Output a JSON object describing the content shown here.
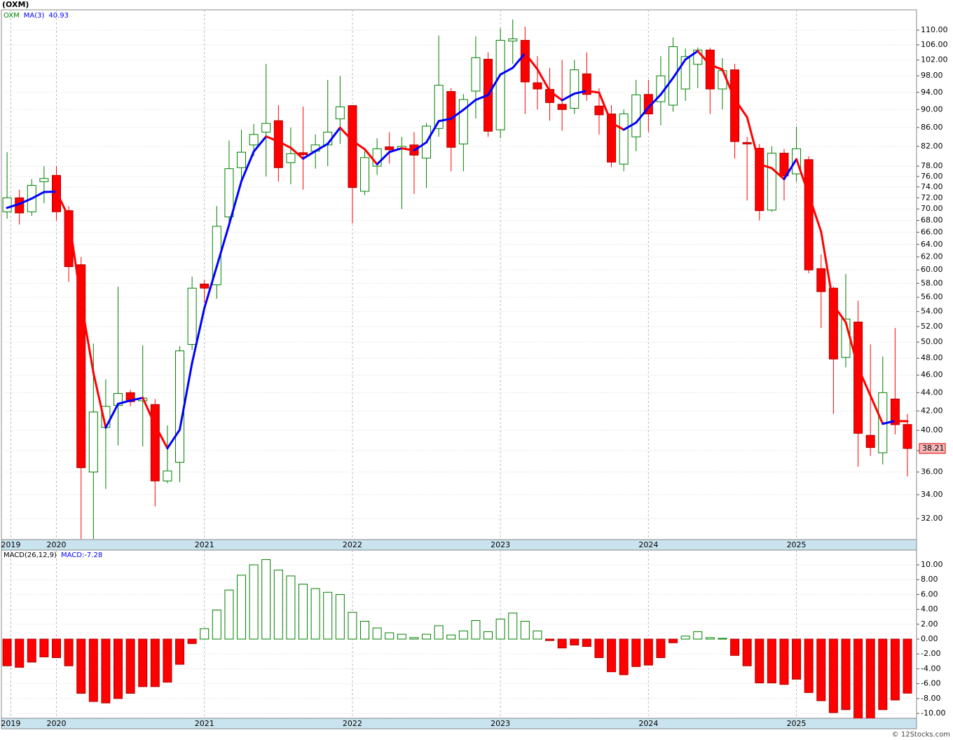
{
  "header": {
    "title": "(OXM)"
  },
  "chart_data": [
    {
      "type": "candlestick",
      "symbol": "OXM",
      "categories": [
        null,
        null,
        null,
        null,
        null,
        null,
        null,
        null,
        null,
        null,
        null,
        null,
        null,
        null,
        null,
        null,
        null,
        null,
        null,
        null,
        null,
        null,
        null,
        null,
        null,
        null,
        null,
        null,
        null,
        null,
        null,
        null,
        null,
        null,
        null,
        null,
        null,
        null,
        null,
        null,
        null,
        null,
        null,
        null,
        null,
        null,
        null,
        null,
        null,
        null,
        null,
        null,
        null,
        null,
        null,
        null,
        null,
        null,
        null,
        null,
        null,
        null,
        null,
        null,
        null,
        null,
        null,
        null,
        null,
        null,
        null,
        null,
        null,
        null
      ],
      "open": [
        69.5,
        72,
        69.5,
        75,
        76.2,
        69.7,
        60.8,
        36,
        40.3,
        42.6,
        44,
        43.1,
        42.7,
        35.2,
        36.9,
        49.7,
        57.9,
        57.8,
        68.6,
        77.7,
        82.3,
        85,
        87.5,
        78.7,
        80.7,
        81,
        82.3,
        87.9,
        90.9,
        73.2,
        78,
        81.9,
        81.4,
        82.3,
        79.6,
        85.8,
        94.2,
        82.5,
        94.3,
        102.2,
        85.5,
        107,
        107.2,
        96.3,
        94.7,
        91.2,
        90.3,
        98.5,
        90.8,
        89,
        78.4,
        84,
        93.5,
        91.8,
        91,
        94.8,
        100.9,
        104.6,
        94.8,
        99.5,
        82.8,
        81.6,
        69.8,
        80.6,
        76.5,
        79.3,
        60.2,
        57.3,
        48.1,
        52.6,
        39.5,
        37.8,
        43.3,
        40.6
      ],
      "high": [
        80.8,
        73.5,
        75.5,
        78,
        78,
        70.5,
        62,
        49.8,
        45.5,
        57.5,
        44.3,
        49.6,
        43.3,
        40.5,
        49.5,
        59,
        58.5,
        70.5,
        83.2,
        85.5,
        86.8,
        101,
        91,
        86,
        90.7,
        84.5,
        97,
        98,
        91,
        81,
        83.7,
        85,
        84,
        85,
        87,
        108.5,
        95,
        93.6,
        108.3,
        104,
        110.5,
        113,
        111,
        103,
        100,
        102,
        102,
        104,
        95,
        91,
        90,
        97,
        97,
        103,
        108,
        105,
        105.3,
        105.2,
        102.5,
        101,
        84,
        82.5,
        82,
        81.5,
        86.2,
        80,
        62.4,
        57.5,
        59.4,
        55.5,
        49.7,
        48.2,
        51.8,
        41.7
      ],
      "low": [
        68.3,
        67.3,
        68.8,
        71,
        68,
        58.2,
        30.4,
        30.4,
        34.5,
        38.5,
        42.5,
        38.4,
        33,
        35,
        35.1,
        49,
        55.2,
        55.8,
        67.8,
        75.2,
        80,
        76,
        75,
        74.5,
        73.5,
        77.5,
        78,
        82.5,
        67.5,
        72.5,
        76.3,
        78.5,
        70,
        72.7,
        73.8,
        84,
        77,
        77,
        88,
        84,
        83.7,
        101,
        89,
        90,
        87.5,
        85.3,
        89,
        92,
        84.5,
        77.8,
        77,
        81,
        85,
        86.5,
        89.5,
        92,
        95,
        89,
        90,
        79.5,
        71.5,
        68,
        69.5,
        71.5,
        75,
        59.5,
        51.8,
        41.7,
        46.9,
        36.5,
        37.5,
        36.7,
        39.6,
        35.6
      ],
      "close": [
        72,
        69.3,
        74.3,
        75.6,
        69.5,
        60.5,
        36.4,
        41.9,
        42.5,
        43.9,
        43,
        43.4,
        35.2,
        36.1,
        48.9,
        57.3,
        57.3,
        67,
        77.5,
        80.8,
        84.5,
        86.9,
        77.7,
        80.5,
        80.3,
        82.3,
        85,
        90.6,
        73.9,
        79.7,
        81.5,
        81.3,
        82,
        80.2,
        86.3,
        95.7,
        81.8,
        92.3,
        102.6,
        85.2,
        107.2,
        107.6,
        96.5,
        94.8,
        91.6,
        90,
        99.5,
        93.5,
        88.8,
        78.8,
        89,
        93.4,
        89,
        98,
        105.5,
        102.9,
        104.6,
        94.8,
        99.3,
        83,
        82.5,
        69.7,
        80.6,
        76.1,
        81.5,
        60,
        56.8,
        47.9,
        53,
        39.7,
        38.3,
        44,
        40.58,
        38.21
      ],
      "up_color": "#008000",
      "down_color": "#ff0000",
      "ma": {
        "name": "MA(3)",
        "color": "#0000ff",
        "down_color": "#ff0000",
        "values": [
          70.2,
          70.9,
          71.87,
          73.07,
          73.13,
          68.53,
          55.47,
          46.27,
          40.27,
          42.77,
          43.13,
          43.43,
          40.53,
          38.23,
          40.07,
          47.43,
          54.5,
          60.53,
          67.27,
          75.1,
          80.93,
          84.07,
          83.03,
          81.7,
          79.5,
          81.03,
          82.53,
          85.97,
          83.17,
          81.4,
          78.37,
          80.83,
          81.6,
          81.17,
          82.83,
          87.4,
          87.93,
          89.93,
          92.23,
          93.37,
          98.33,
          100,
          103.77,
          99.63,
          94.3,
          92.13,
          93.7,
          94.33,
          93.93,
          87.03,
          85.53,
          87.07,
          90.47,
          93.47,
          97.5,
          102.13,
          104.33,
          100.77,
          99.57,
          92.37,
          88.27,
          78.4,
          77.6,
          75.47,
          79.4,
          72.53,
          66.1,
          54.9,
          52.57,
          46.87,
          43.67,
          40.67,
          40.96,
          40.93
        ]
      },
      "log_y": true,
      "grid": true,
      "ylim": [
        30.35,
        115.8
      ],
      "yticks": [
        {
          "value": 110,
          "label": "110.00"
        },
        {
          "value": 106,
          "label": "106.00"
        },
        {
          "value": 102,
          "label": "102.00"
        },
        {
          "value": 98,
          "label": "98.00"
        },
        {
          "value": 94,
          "label": "94.00"
        },
        {
          "value": 90,
          "label": "90.00"
        },
        {
          "value": 86,
          "label": "86.00"
        },
        {
          "value": 82,
          "label": "82.00"
        },
        {
          "value": 78,
          "label": "78.00"
        },
        {
          "value": 76,
          "label": "76.00"
        },
        {
          "value": 74,
          "label": "74.00"
        },
        {
          "value": 72,
          "label": "72.00"
        },
        {
          "value": 70,
          "label": "70.00"
        },
        {
          "value": 68,
          "label": "68.00"
        },
        {
          "value": 66,
          "label": "66.00"
        },
        {
          "value": 64,
          "label": "64.00"
        },
        {
          "value": 62,
          "label": "62.00"
        },
        {
          "value": 60,
          "label": "60.00"
        },
        {
          "value": 58,
          "label": "58.00"
        },
        {
          "value": 56,
          "label": "56.00"
        },
        {
          "value": 54,
          "label": "54.00"
        },
        {
          "value": 52,
          "label": "52.00"
        },
        {
          "value": 50,
          "label": "50.00"
        },
        {
          "value": 48,
          "label": "48.00"
        },
        {
          "value": 46,
          "label": "46.00"
        },
        {
          "value": 44,
          "label": "44.00"
        },
        {
          "value": 42,
          "label": "42.00"
        },
        {
          "value": 40,
          "label": "40.00"
        },
        {
          "value": 38,
          "label": "38.00"
        },
        {
          "value": 36,
          "label": "36.00"
        },
        {
          "value": 34,
          "label": "34.00"
        },
        {
          "value": 32,
          "label": "32.00"
        }
      ],
      "xlim": [
        -0.46,
        73.74
      ],
      "xticks": [
        {
          "value": 0.3,
          "label": "2019"
        },
        {
          "value": 4,
          "label": "2020"
        },
        {
          "value": 16,
          "label": "2021"
        },
        {
          "value": 28,
          "label": "2022"
        },
        {
          "value": 40,
          "label": "2023"
        },
        {
          "value": 52,
          "label": "2024"
        },
        {
          "value": 64,
          "label": "2025"
        }
      ]
    },
    {
      "type": "bar",
      "title": "MACD(26,12,9)",
      "label": "MACD:",
      "grid": true,
      "up_color": "#008000",
      "down_color": "#ff0000",
      "series": [
        {
          "name": "MACD",
          "values": [
            -3.6,
            -3.8,
            -3.1,
            -2.4,
            -2.5,
            -3.6,
            -7.3,
            -8.4,
            -8.6,
            -8.0,
            -7.3,
            -6.4,
            -6.4,
            -5.8,
            -3.4,
            -0.6,
            1.4,
            3.9,
            6.6,
            8.6,
            10.0,
            10.7,
            9.3,
            8.5,
            7.4,
            6.8,
            6.3,
            6.0,
            3.6,
            2.4,
            1.5,
            0.85,
            0.65,
            0.2,
            0.65,
            1.8,
            0.55,
            1.1,
            2.5,
            1.0,
            2.7,
            3.5,
            2.4,
            1.1,
            -0.2,
            -1.2,
            -0.8,
            -1.0,
            -2.5,
            -4.4,
            -4.8,
            -3.7,
            -3.5,
            -2.5,
            -0.5,
            0.4,
            1.0,
            0.2,
            0.1,
            -2.2,
            -3.6,
            -5.9,
            -5.9,
            -6.1,
            -5.4,
            -7.2,
            -8.3,
            -9.9,
            -9.5,
            -10.8,
            -10.7,
            -9.5,
            -8.2,
            -7.28
          ]
        }
      ],
      "ylim": [
        -10.66,
        11.98
      ],
      "yticks": [
        {
          "value": 10,
          "label": "10.00"
        },
        {
          "value": 8,
          "label": "8.00"
        },
        {
          "value": 6,
          "label": "6.00"
        },
        {
          "value": 4,
          "label": "4.00"
        },
        {
          "value": 2,
          "label": "2.00"
        },
        {
          "value": 0,
          "label": "0.00"
        },
        {
          "value": -2,
          "label": "-2.00"
        },
        {
          "value": -4,
          "label": "-4.00"
        },
        {
          "value": -6,
          "label": "-6.00"
        },
        {
          "value": -8,
          "label": "-8.00"
        },
        {
          "value": -10,
          "label": "-10.00"
        }
      ],
      "xlim": [
        -0.46,
        73.74
      ],
      "xticks": [
        {
          "value": 0.3,
          "label": "2019"
        },
        {
          "value": 4,
          "label": "2020"
        },
        {
          "value": 16,
          "label": "2021"
        },
        {
          "value": 28,
          "label": "2022"
        },
        {
          "value": 40,
          "label": "2023"
        },
        {
          "value": 52,
          "label": "2024"
        },
        {
          "value": 64,
          "label": "2025"
        }
      ]
    }
  ],
  "watermark": "© 12Stocks.com"
}
